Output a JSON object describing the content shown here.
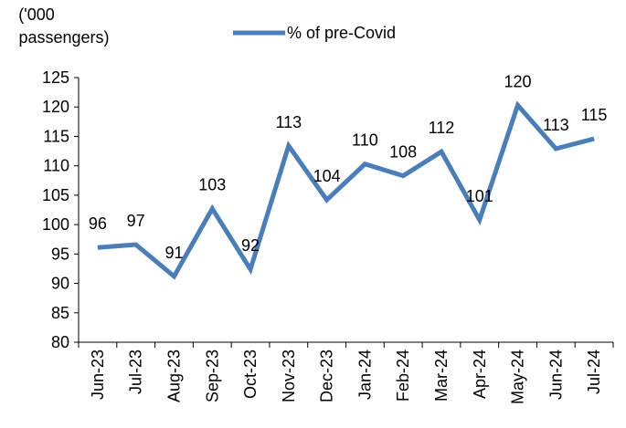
{
  "chart_data": {
    "type": "line",
    "y_label": [
      "('000",
      "passengers)"
    ],
    "categories": [
      "Jun-23",
      "Jul-23",
      "Aug-23",
      "Sep-23",
      "Oct-23",
      "Nov-23",
      "Dec-23",
      "Jan-24",
      "Feb-24",
      "Mar-24",
      "Apr-24",
      "May-24",
      "Jun-24",
      "Jul-24"
    ],
    "series": [
      {
        "name": "% of pre-Covid",
        "color": "#4a7ebb",
        "values": [
          96.1,
          96.6,
          91.2,
          102.7,
          92.4,
          113.4,
          104.2,
          110.3,
          108.3,
          112.4,
          100.8,
          120.3,
          112.9,
          114.6
        ],
        "value_labels": [
          "96",
          "97",
          "91",
          "103",
          "92",
          "113",
          "104",
          "110",
          "108",
          "112",
          "101",
          "120",
          "113",
          "115"
        ]
      }
    ],
    "ylim": [
      80,
      125
    ],
    "yticks": [
      80,
      85,
      90,
      95,
      100,
      105,
      110,
      115,
      120,
      125
    ],
    "legend": "top",
    "grid": false
  }
}
